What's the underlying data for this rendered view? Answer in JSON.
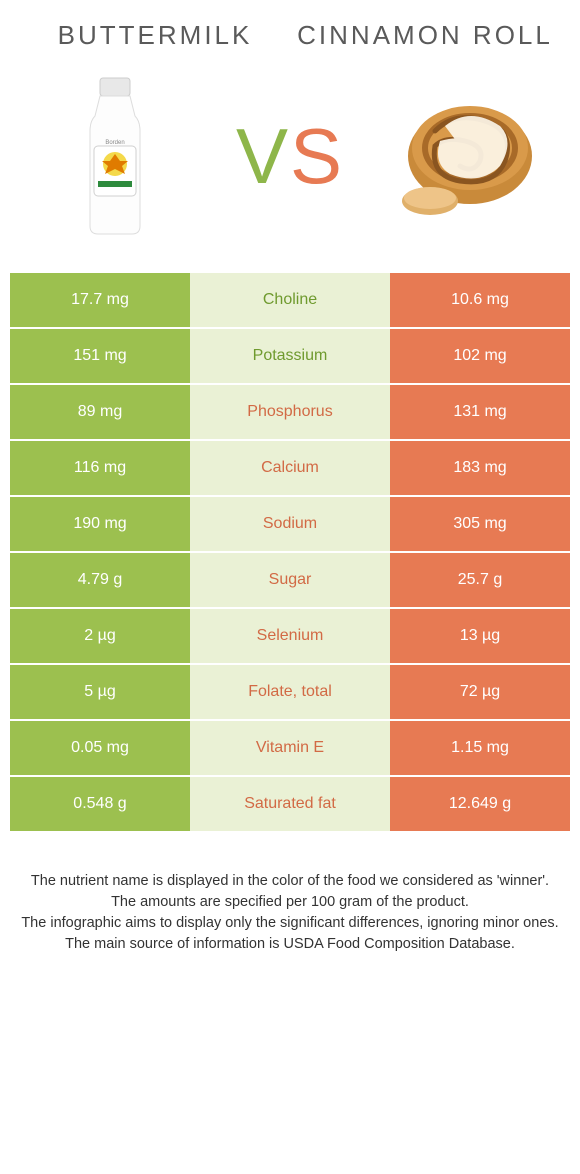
{
  "colors": {
    "left_bg": "#9cc04f",
    "right_bg": "#e77a53",
    "mid_bg": "#eaf1d5",
    "left_text": "#6f9a2e",
    "right_text": "#d26a45",
    "title_text": "#5a5a5a"
  },
  "header": {
    "left_title": "Buttermilk",
    "right_title": "Cinnamon roll",
    "vs_v": "V",
    "vs_s": "S"
  },
  "rows": [
    {
      "left": "17.7 mg",
      "label": "Choline",
      "right": "10.6 mg",
      "winner": "left"
    },
    {
      "left": "151 mg",
      "label": "Potassium",
      "right": "102 mg",
      "winner": "left"
    },
    {
      "left": "89 mg",
      "label": "Phosphorus",
      "right": "131 mg",
      "winner": "right"
    },
    {
      "left": "116 mg",
      "label": "Calcium",
      "right": "183 mg",
      "winner": "right"
    },
    {
      "left": "190 mg",
      "label": "Sodium",
      "right": "305 mg",
      "winner": "right"
    },
    {
      "left": "4.79 g",
      "label": "Sugar",
      "right": "25.7 g",
      "winner": "right"
    },
    {
      "left": "2 µg",
      "label": "Selenium",
      "right": "13 µg",
      "winner": "right"
    },
    {
      "left": "5 µg",
      "label": "Folate, total",
      "right": "72 µg",
      "winner": "right"
    },
    {
      "left": "0.05 mg",
      "label": "Vitamin E",
      "right": "1.15 mg",
      "winner": "right"
    },
    {
      "left": "0.548 g",
      "label": "Saturated fat",
      "right": "12.649 g",
      "winner": "right"
    }
  ],
  "footer": {
    "line1": "The nutrient name is displayed in the color of the food we considered as 'winner'.",
    "line2": "The amounts are specified per 100 gram of the product.",
    "line3": "The infographic aims to display only the significant differences, ignoring minor ones.",
    "line4": "The main source of information is USDA Food Composition Database."
  }
}
